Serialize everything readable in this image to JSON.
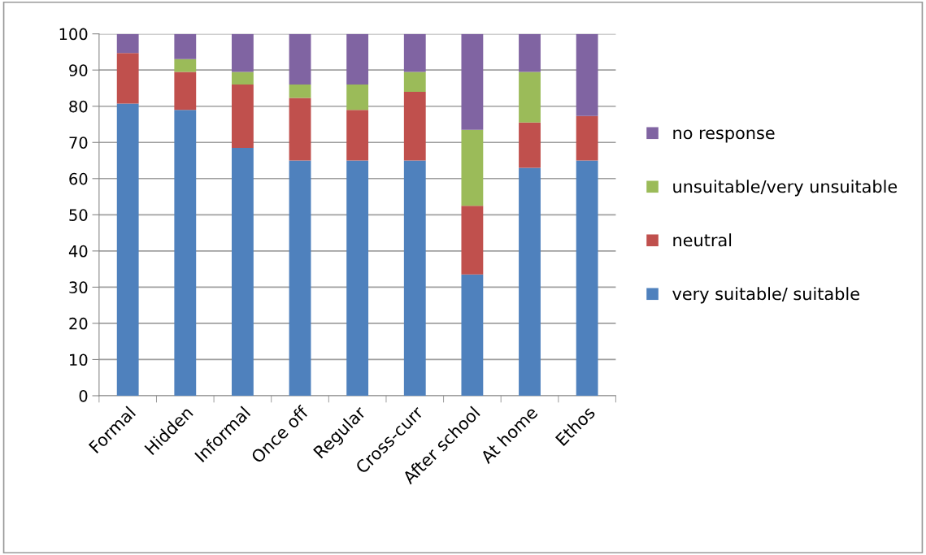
{
  "chart_data": {
    "type": "bar",
    "stacked": true,
    "categories": [
      "Formal",
      "Hidden",
      "Informal",
      "Once off",
      "Regular",
      "Cross-curr",
      "After school",
      "At home",
      "Ethos"
    ],
    "series": [
      {
        "name": "very suitable/ suitable",
        "color": "#4f81bd",
        "values": [
          80.7,
          79,
          68.5,
          65,
          65,
          65,
          33.5,
          63,
          65
        ]
      },
      {
        "name": "neutral",
        "color": "#c0504d",
        "values": [
          14,
          10.5,
          17.5,
          17.3,
          14,
          19,
          19,
          12.5,
          12.3
        ]
      },
      {
        "name": "unsuitable/very unsuitable",
        "color": "#9bbb59",
        "values": [
          0,
          3.5,
          3.5,
          3.7,
          7,
          5.5,
          21,
          14,
          0
        ]
      },
      {
        "name": "no response",
        "color": "#8064a2",
        "values": [
          5.3,
          7,
          10.5,
          14,
          14,
          10.5,
          26.5,
          10.5,
          22.7
        ]
      }
    ],
    "ylim": [
      0,
      100
    ],
    "yticks": [
      0,
      10,
      20,
      30,
      40,
      50,
      60,
      70,
      80,
      90,
      100
    ],
    "grid": "y",
    "legend": "right"
  }
}
